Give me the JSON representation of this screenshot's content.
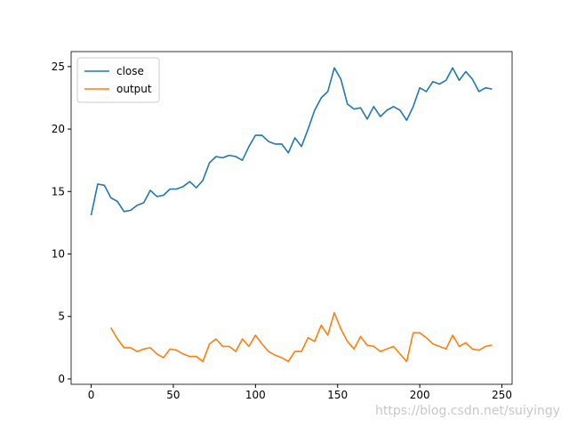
{
  "chart_data": {
    "type": "line",
    "x": [
      0,
      4,
      8,
      12,
      16,
      20,
      24,
      28,
      32,
      36,
      40,
      44,
      48,
      52,
      56,
      60,
      64,
      68,
      72,
      76,
      80,
      84,
      88,
      92,
      96,
      100,
      104,
      108,
      112,
      116,
      120,
      124,
      128,
      132,
      136,
      140,
      144,
      148,
      152,
      156,
      160,
      164,
      168,
      172,
      176,
      180,
      184,
      188,
      192,
      196,
      200,
      204,
      208,
      212,
      216,
      220,
      224,
      228,
      232,
      236,
      240,
      244
    ],
    "series": [
      {
        "name": "close",
        "color": "#1f77b4",
        "values": [
          13.1,
          15.6,
          15.5,
          14.5,
          14.2,
          13.4,
          13.5,
          13.9,
          14.1,
          15.1,
          14.6,
          14.7,
          15.2,
          15.2,
          15.4,
          15.8,
          15.3,
          15.9,
          17.3,
          17.8,
          17.7,
          17.9,
          17.8,
          17.5,
          18.6,
          19.5,
          19.5,
          19.0,
          18.8,
          18.8,
          18.1,
          19.3,
          18.6,
          20.0,
          21.5,
          22.5,
          23.0,
          24.9,
          24.0,
          22.0,
          21.6,
          21.7,
          20.8,
          21.8,
          21.0,
          21.5,
          21.8,
          21.5,
          20.7,
          21.8,
          23.3,
          23.0,
          23.8,
          23.6,
          23.9,
          24.9,
          23.9,
          24.6,
          24.0,
          23.0,
          23.3,
          23.2
        ]
      },
      {
        "name": "output",
        "color": "#ff7f0e",
        "values": [
          null,
          null,
          null,
          4.1,
          3.2,
          2.5,
          2.5,
          2.2,
          2.4,
          2.5,
          2.0,
          1.7,
          2.4,
          2.3,
          2.0,
          1.8,
          1.8,
          1.4,
          2.8,
          3.2,
          2.6,
          2.6,
          2.2,
          3.2,
          2.6,
          3.5,
          2.8,
          2.2,
          1.9,
          1.7,
          1.4,
          2.2,
          2.2,
          3.3,
          3.0,
          4.3,
          3.5,
          5.3,
          4.0,
          3.0,
          2.4,
          3.4,
          2.7,
          2.6,
          2.2,
          2.4,
          2.6,
          2.0,
          1.4,
          3.7,
          3.7,
          3.3,
          2.8,
          2.6,
          2.4,
          3.5,
          2.6,
          2.9,
          2.4,
          2.3,
          2.6,
          2.7
        ]
      }
    ],
    "xlim": [
      -12.2,
      256.2
    ],
    "ylim": [
      -0.43,
      26.2
    ],
    "xticks": [
      0,
      50,
      100,
      150,
      200,
      250
    ],
    "yticks": [
      0,
      5,
      10,
      15,
      20,
      25
    ],
    "legend": "upper left",
    "watermark": "https://blog.csdn.net/suiyingy"
  }
}
